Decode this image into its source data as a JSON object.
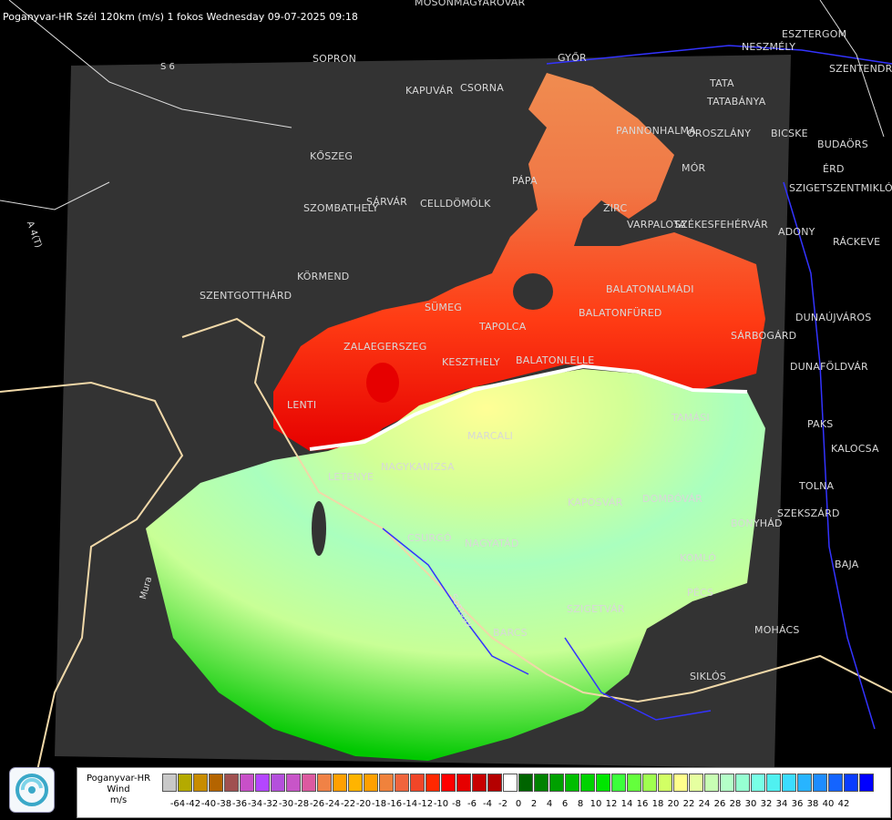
{
  "header": {
    "title": "Poganyvar-HR Szél 120km (m/s) 1 fokos Wednesday 09-07-2025 09:18"
  },
  "map": {
    "cities": [
      "MOSONMAGYARÓVÁR",
      "GYŐR",
      "NESZMÉLY",
      "ESZTERGOM",
      "SOPRON",
      "KAPUVÁR",
      "CSORNA",
      "TATA",
      "TATABÁNYA",
      "SZENTENDRE",
      "PANNONHALMA",
      "OROSZLÁNY",
      "BICSKE",
      "BUDAÖRS",
      "KŐSZEG",
      "PÁPA",
      "MÓR",
      "ÉRD",
      "SZIGETSZENTMIKLÓS",
      "SÁRVÁR",
      "CELLDÖMÖLK",
      "SZOMBATHELY",
      "ZIRC",
      "VARPALOTA",
      "SZÉKESFEHÉRVÁR",
      "ADONY",
      "RÁCKEVE",
      "KÖRMEND",
      "SZENTGOTTHÁRD",
      "BALATONALMÁDI",
      "BALATONFÜRED",
      "SÜMEG",
      "DUNAÚJVÁROS",
      "TAPOLCA",
      "ZALAEGERSZEG",
      "SÁRBOGÁRD",
      "KESZTHELY",
      "BALATONLELLE",
      "DUNAFÖLDVÁR",
      "LENTI",
      "TAMÁSI",
      "PAKS",
      "MARCALI",
      "KALOCSA",
      "LETENYE",
      "NAGYKANIZSA",
      "KAPOSVÁR",
      "DOMBÓVÁR",
      "TOLNA",
      "SZEKSZÁRD",
      "BONYHÁD",
      "CSURGÓ",
      "NAGYATÁD",
      "KOMLÓ",
      "BAJA",
      "SZIGETVÁR",
      "PÉCS",
      "BARCS",
      "MOHÁCS",
      "SIKLÓS"
    ],
    "roads": [
      "S 6",
      "A 4(T)",
      "Mura",
      "Drava",
      "Somogy"
    ]
  },
  "legend": {
    "name_lines": [
      "Poganyvar-HR",
      "Wind",
      "m/s"
    ],
    "colors": [
      "#c8c8c8",
      "#b4aa00",
      "#c88c00",
      "#b46400",
      "#a05050",
      "#c850c8",
      "#b446ff",
      "#b450dc",
      "#c855c8",
      "#dc5aa0",
      "#f08246",
      "#ffa000",
      "#ffb400",
      "#ffa000",
      "#f0823c",
      "#f0643c",
      "#f04628",
      "#ff2800",
      "#ff0000",
      "#e60000",
      "#c80000",
      "#b40000",
      "#ffffff",
      "#006400",
      "#008200",
      "#00a000",
      "#00be00",
      "#00d200",
      "#00e600",
      "#3cff3c",
      "#64ff3c",
      "#a0ff50",
      "#d2ff64",
      "#ffff8c",
      "#e6ffa0",
      "#c8ffb4",
      "#b4ffc8",
      "#96ffd2",
      "#78ffe6",
      "#50f0f0",
      "#3cdcff",
      "#28b4ff",
      "#1e8cff",
      "#1464ff",
      "#0a3cff",
      "#0000ff"
    ],
    "ticks": [
      "-64",
      "-42",
      "-40",
      "-38",
      "-36",
      "-34",
      "-32",
      "-30",
      "-28",
      "-26",
      "-24",
      "-22",
      "-20",
      "-18",
      "-16",
      "-14",
      "-12",
      "-10",
      "-8",
      "-6",
      "-4",
      "-2",
      "0",
      "2",
      "4",
      "6",
      "8",
      "10",
      "12",
      "14",
      "16",
      "18",
      "20",
      "22",
      "24",
      "26",
      "28",
      "30",
      "32",
      "34",
      "36",
      "38",
      "40",
      "42"
    ]
  }
}
